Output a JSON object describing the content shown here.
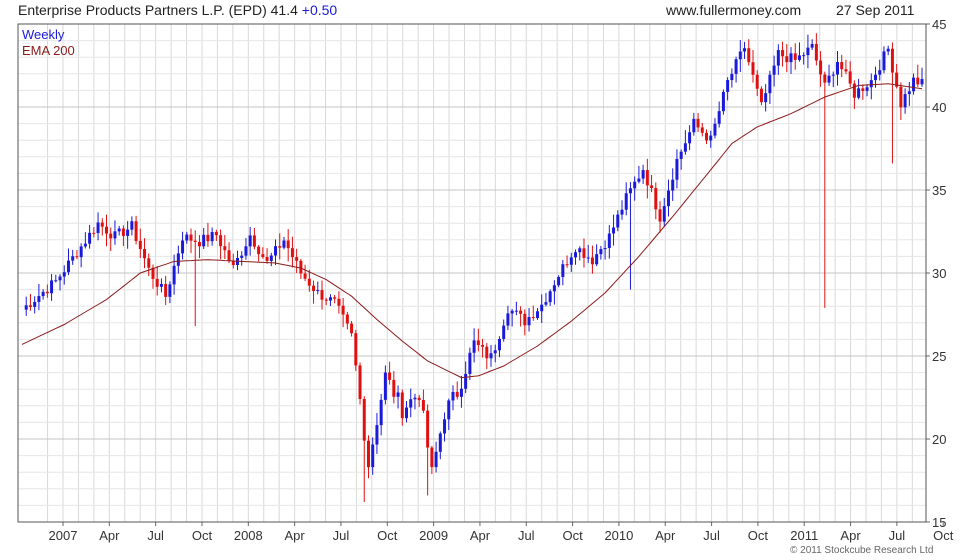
{
  "header": {
    "title": "Enterprise Products Partners L.P. (EPD) 41.4",
    "change": "+0.50",
    "site": "www.fullermoney.com",
    "date": "27 Sep 2011"
  },
  "copyright": "© 2011 Stockcube Research Ltd",
  "colors": {
    "up": "#1a1adb",
    "down": "#e01010",
    "ema": "#8b1a1a",
    "grid": "#d9d9d9"
  },
  "chart_data": {
    "type": "candlestick",
    "legend": [
      {
        "label": "Weekly",
        "color": "#1a1adb"
      },
      {
        "label": "EMA 200",
        "color": "#8b1a1a"
      }
    ],
    "ylim": [
      15,
      45
    ],
    "y_ticks": [
      15,
      20,
      25,
      30,
      35,
      40,
      45
    ],
    "x_ticks": [
      "2007",
      "Apr",
      "Jul",
      "Oct",
      "2008",
      "Apr",
      "Jul",
      "Oct",
      "2009",
      "Apr",
      "Jul",
      "Oct",
      "2010",
      "Apr",
      "Jul",
      "Oct",
      "2011",
      "Apr",
      "Jul",
      "Oct"
    ],
    "close_path": [
      [
        0,
        27.8
      ],
      [
        8,
        29.5
      ],
      [
        14,
        31.6
      ],
      [
        18,
        33.0
      ],
      [
        22,
        32.2
      ],
      [
        26,
        32.8
      ],
      [
        30,
        30.2
      ],
      [
        34,
        28.6
      ],
      [
        38,
        32.2
      ],
      [
        42,
        31.9
      ],
      [
        46,
        32.3
      ],
      [
        50,
        30.3
      ],
      [
        54,
        32.3
      ],
      [
        58,
        30.6
      ],
      [
        62,
        32.0
      ],
      [
        66,
        30.0
      ],
      [
        70,
        28.8
      ],
      [
        74,
        28.2
      ],
      [
        78,
        26.2
      ],
      [
        82,
        18.5
      ],
      [
        86,
        23.8
      ],
      [
        90,
        21.8
      ],
      [
        94,
        22.8
      ],
      [
        97,
        17.9
      ],
      [
        100,
        21.6
      ],
      [
        103,
        22.8
      ],
      [
        107,
        25.8
      ],
      [
        111,
        24.8
      ],
      [
        115,
        27.9
      ],
      [
        119,
        27.1
      ],
      [
        123,
        28.1
      ],
      [
        127,
        29.9
      ],
      [
        131,
        31.6
      ],
      [
        135,
        30.8
      ],
      [
        139,
        32.2
      ],
      [
        143,
        34.5
      ],
      [
        147,
        36.3
      ],
      [
        151,
        33.4
      ],
      [
        155,
        36.8
      ],
      [
        159,
        39.0
      ],
      [
        163,
        38.0
      ],
      [
        167,
        41.5
      ],
      [
        171,
        43.6
      ],
      [
        175,
        40.0
      ],
      [
        179,
        43.2
      ],
      [
        183,
        42.8
      ],
      [
        187,
        43.6
      ],
      [
        190,
        41.2
      ],
      [
        193,
        42.8
      ],
      [
        197,
        40.8
      ],
      [
        201,
        41.6
      ],
      [
        205,
        43.5
      ],
      [
        208,
        40.2
      ],
      [
        211,
        41.6
      ],
      [
        213,
        41.4
      ]
    ],
    "lows": [
      [
        81,
        16.2
      ],
      [
        96,
        16.6
      ],
      [
        190,
        27.9
      ],
      [
        206,
        36.6
      ],
      [
        144,
        29.0
      ],
      [
        41,
        26.8
      ]
    ],
    "ema_path": [
      [
        0,
        25.7
      ],
      [
        10,
        26.9
      ],
      [
        20,
        28.4
      ],
      [
        28,
        30.0
      ],
      [
        36,
        30.7
      ],
      [
        44,
        30.8
      ],
      [
        52,
        30.7
      ],
      [
        60,
        30.6
      ],
      [
        66,
        30.3
      ],
      [
        72,
        29.6
      ],
      [
        78,
        28.6
      ],
      [
        84,
        27.2
      ],
      [
        90,
        25.9
      ],
      [
        96,
        24.7
      ],
      [
        100,
        24.2
      ],
      [
        104,
        23.7
      ],
      [
        108,
        23.8
      ],
      [
        114,
        24.4
      ],
      [
        122,
        25.6
      ],
      [
        130,
        27.1
      ],
      [
        138,
        28.8
      ],
      [
        146,
        31.0
      ],
      [
        154,
        33.4
      ],
      [
        162,
        35.9
      ],
      [
        168,
        37.8
      ],
      [
        174,
        38.8
      ],
      [
        182,
        39.6
      ],
      [
        190,
        40.6
      ],
      [
        198,
        41.3
      ],
      [
        205,
        41.4
      ],
      [
        213,
        41.1
      ]
    ]
  }
}
